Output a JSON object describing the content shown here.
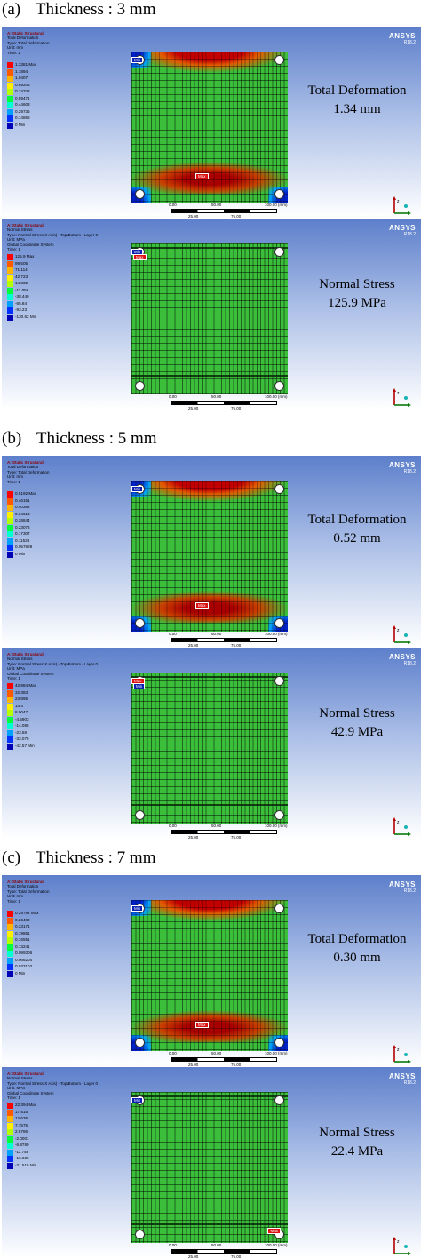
{
  "sections": [
    {
      "label": "(a)",
      "title": "Thickness : 3 mm",
      "panels": [
        {
          "type": "deformation",
          "header": [
            "A: Static Structural",
            "Total Deformation",
            "Type: Total Deformation",
            "Unit: mm",
            "Time: 1"
          ],
          "legend": [
            "1.3381 Max",
            "1.1894",
            "1.0407",
            "0.89206",
            "0.74338",
            "0.59471",
            "0.44603",
            "0.29735",
            "0.14868",
            "0 Min"
          ],
          "result_label": "Total Deformation",
          "result_value": "1.34 mm",
          "markers": [
            "Min",
            "Max"
          ]
        },
        {
          "type": "stress",
          "header": [
            "A: Static Structural",
            "Normal Stress",
            "Type: Normal Stress(X Axis) - Top/Bottom - Layer 0",
            "Unit: MPa",
            "Global Coordinate System",
            "Time: 1"
          ],
          "legend": [
            "125.9 Max",
            "99.505",
            "71.114",
            "42.723",
            "14.332",
            "-11.058",
            "-38.449",
            "-65.84",
            "-93.23",
            "-130.62 Min"
          ],
          "result_label": "Normal Stress",
          "result_value": "125.9 MPa",
          "markers": [
            "Min",
            "Max"
          ]
        }
      ]
    },
    {
      "label": "(b)",
      "title": "Thickness : 5 mm",
      "panels": [
        {
          "type": "deformation",
          "header": [
            "A: Static Structural",
            "Total Deformation",
            "Type: Total Deformation",
            "Unit: mm",
            "Time: 1"
          ],
          "legend": [
            "0.5192 Max",
            "0.46151",
            "0.40382",
            "0.34613",
            "0.28844",
            "0.23076",
            "0.17307",
            "0.11538",
            "0.057689",
            "0 Min"
          ],
          "result_label": "Total Deformation",
          "result_value": "0.52 mm",
          "markers": [
            "Min",
            "Max"
          ]
        },
        {
          "type": "stress",
          "header": [
            "A: Static Structural",
            "Normal Stress",
            "Type: Normal Stress(X Axis) - Top/Bottom - Layer 0",
            "Unit: MPa",
            "Global Coordinate System",
            "Time: 1"
          ],
          "legend": [
            "42.884 Max",
            "32.383",
            "23.895",
            "14.4",
            "8.9047",
            "-4.5903",
            "-14.085",
            "-23.58",
            "-33.075",
            "-42.57 Min"
          ],
          "result_label": "Normal Stress",
          "result_value": "42.9 MPa",
          "markers": [
            "Max",
            "Min"
          ]
        }
      ]
    },
    {
      "label": "(c)",
      "title": "Thickness : 7 mm",
      "panels": [
        {
          "type": "deformation",
          "header": [
            "A: Static Structural",
            "Total Deformation",
            "Type: Total Deformation",
            "Unit: mm",
            "Time: 1"
          ],
          "legend": [
            "0.29792 Max",
            "0.26482",
            "0.23171",
            "0.19861",
            "0.16551",
            "0.13241",
            "0.099306",
            "0.066204",
            "0.033102",
            "0 Min"
          ],
          "result_label": "Total Deformation",
          "result_value": "0.30 mm",
          "markers": [
            "Min",
            "Max"
          ]
        },
        {
          "type": "stress",
          "header": [
            "A: Static Structural",
            "Normal Stress",
            "Type: Normal Stress(X Axis) - Top/Bottom - Layer 0",
            "Unit: MPa",
            "Global Coordinate System",
            "Time: 1"
          ],
          "legend": [
            "22.394 Max",
            "17.515",
            "12.636",
            "7.7575",
            "2.8786",
            "-2.0001",
            "-6.8789",
            "-11.758",
            "-16.636",
            "-21.515 Min"
          ],
          "result_label": "Normal Stress",
          "result_value": "22.4 MPa",
          "markers": [
            "Min",
            "Max"
          ]
        }
      ]
    }
  ],
  "common": {
    "brand": "ANSYS",
    "version": "R18.2",
    "scale_top": [
      "0.00",
      "50.00",
      "100.00 (mm)"
    ],
    "scale_bottom": [
      "25.00",
      "75.00"
    ],
    "axis_labels": [
      "z",
      "x",
      "y"
    ]
  },
  "colors": {
    "legend": [
      "#ff0000",
      "#ff5a00",
      "#ffb400",
      "#ffee00",
      "#b4ff00",
      "#00ff3c",
      "#00ffd2",
      "#00a0ff",
      "#0032ff",
      "#0000b4"
    ],
    "max": "#d40000",
    "min": "#0000b4",
    "panel_top": "#5d7fcb"
  }
}
